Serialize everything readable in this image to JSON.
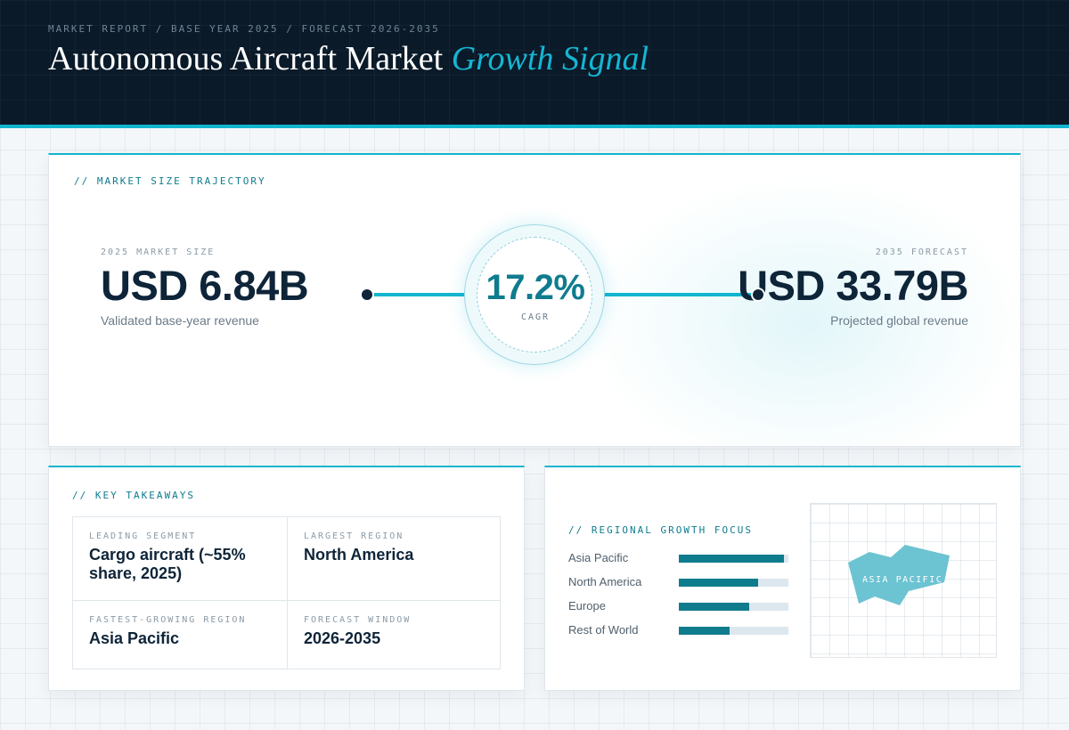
{
  "header": {
    "eyebrow": "MARKET REPORT / BASE YEAR 2025 / FORECAST 2026-2035",
    "title_main": "Autonomous Aircraft Market",
    "title_accent": "Growth Signal"
  },
  "colors": {
    "header_bg": "#0a1a29",
    "accent": "#12b5d0",
    "accent_dark": "#0f7c8e",
    "ink": "#0e2438"
  },
  "trajectory": {
    "label": "// MARKET SIZE TRAJECTORY",
    "base": {
      "caption": "2025 MARKET SIZE",
      "value": "USD 6.84B",
      "subtitle": "Validated base-year revenue"
    },
    "forecast": {
      "caption": "2035 FORECAST",
      "value": "USD 33.79B",
      "subtitle": "Projected global revenue"
    },
    "cagr": {
      "value": "17.2%",
      "label": "CAGR"
    }
  },
  "takeaways": {
    "label": "// KEY TAKEAWAYS",
    "items": [
      {
        "caption": "LEADING SEGMENT",
        "value": "Cargo aircraft (~55% share, 2025)"
      },
      {
        "caption": "LARGEST REGION",
        "value": "North America"
      },
      {
        "caption": "FASTEST-GROWING REGION",
        "value": "Asia Pacific"
      },
      {
        "caption": "FORECAST WINDOW",
        "value": "2026-2035"
      }
    ]
  },
  "regional": {
    "label": "// REGIONAL GROWTH FOCUS",
    "bars": [
      {
        "name": "Asia Pacific",
        "level": 0.96
      },
      {
        "name": "North America",
        "level": 0.72
      },
      {
        "name": "Europe",
        "level": 0.64
      },
      {
        "name": "Rest of World",
        "level": 0.46
      }
    ],
    "map_label": "ASIA PACIFIC",
    "map_color": "#6cc3d1"
  }
}
